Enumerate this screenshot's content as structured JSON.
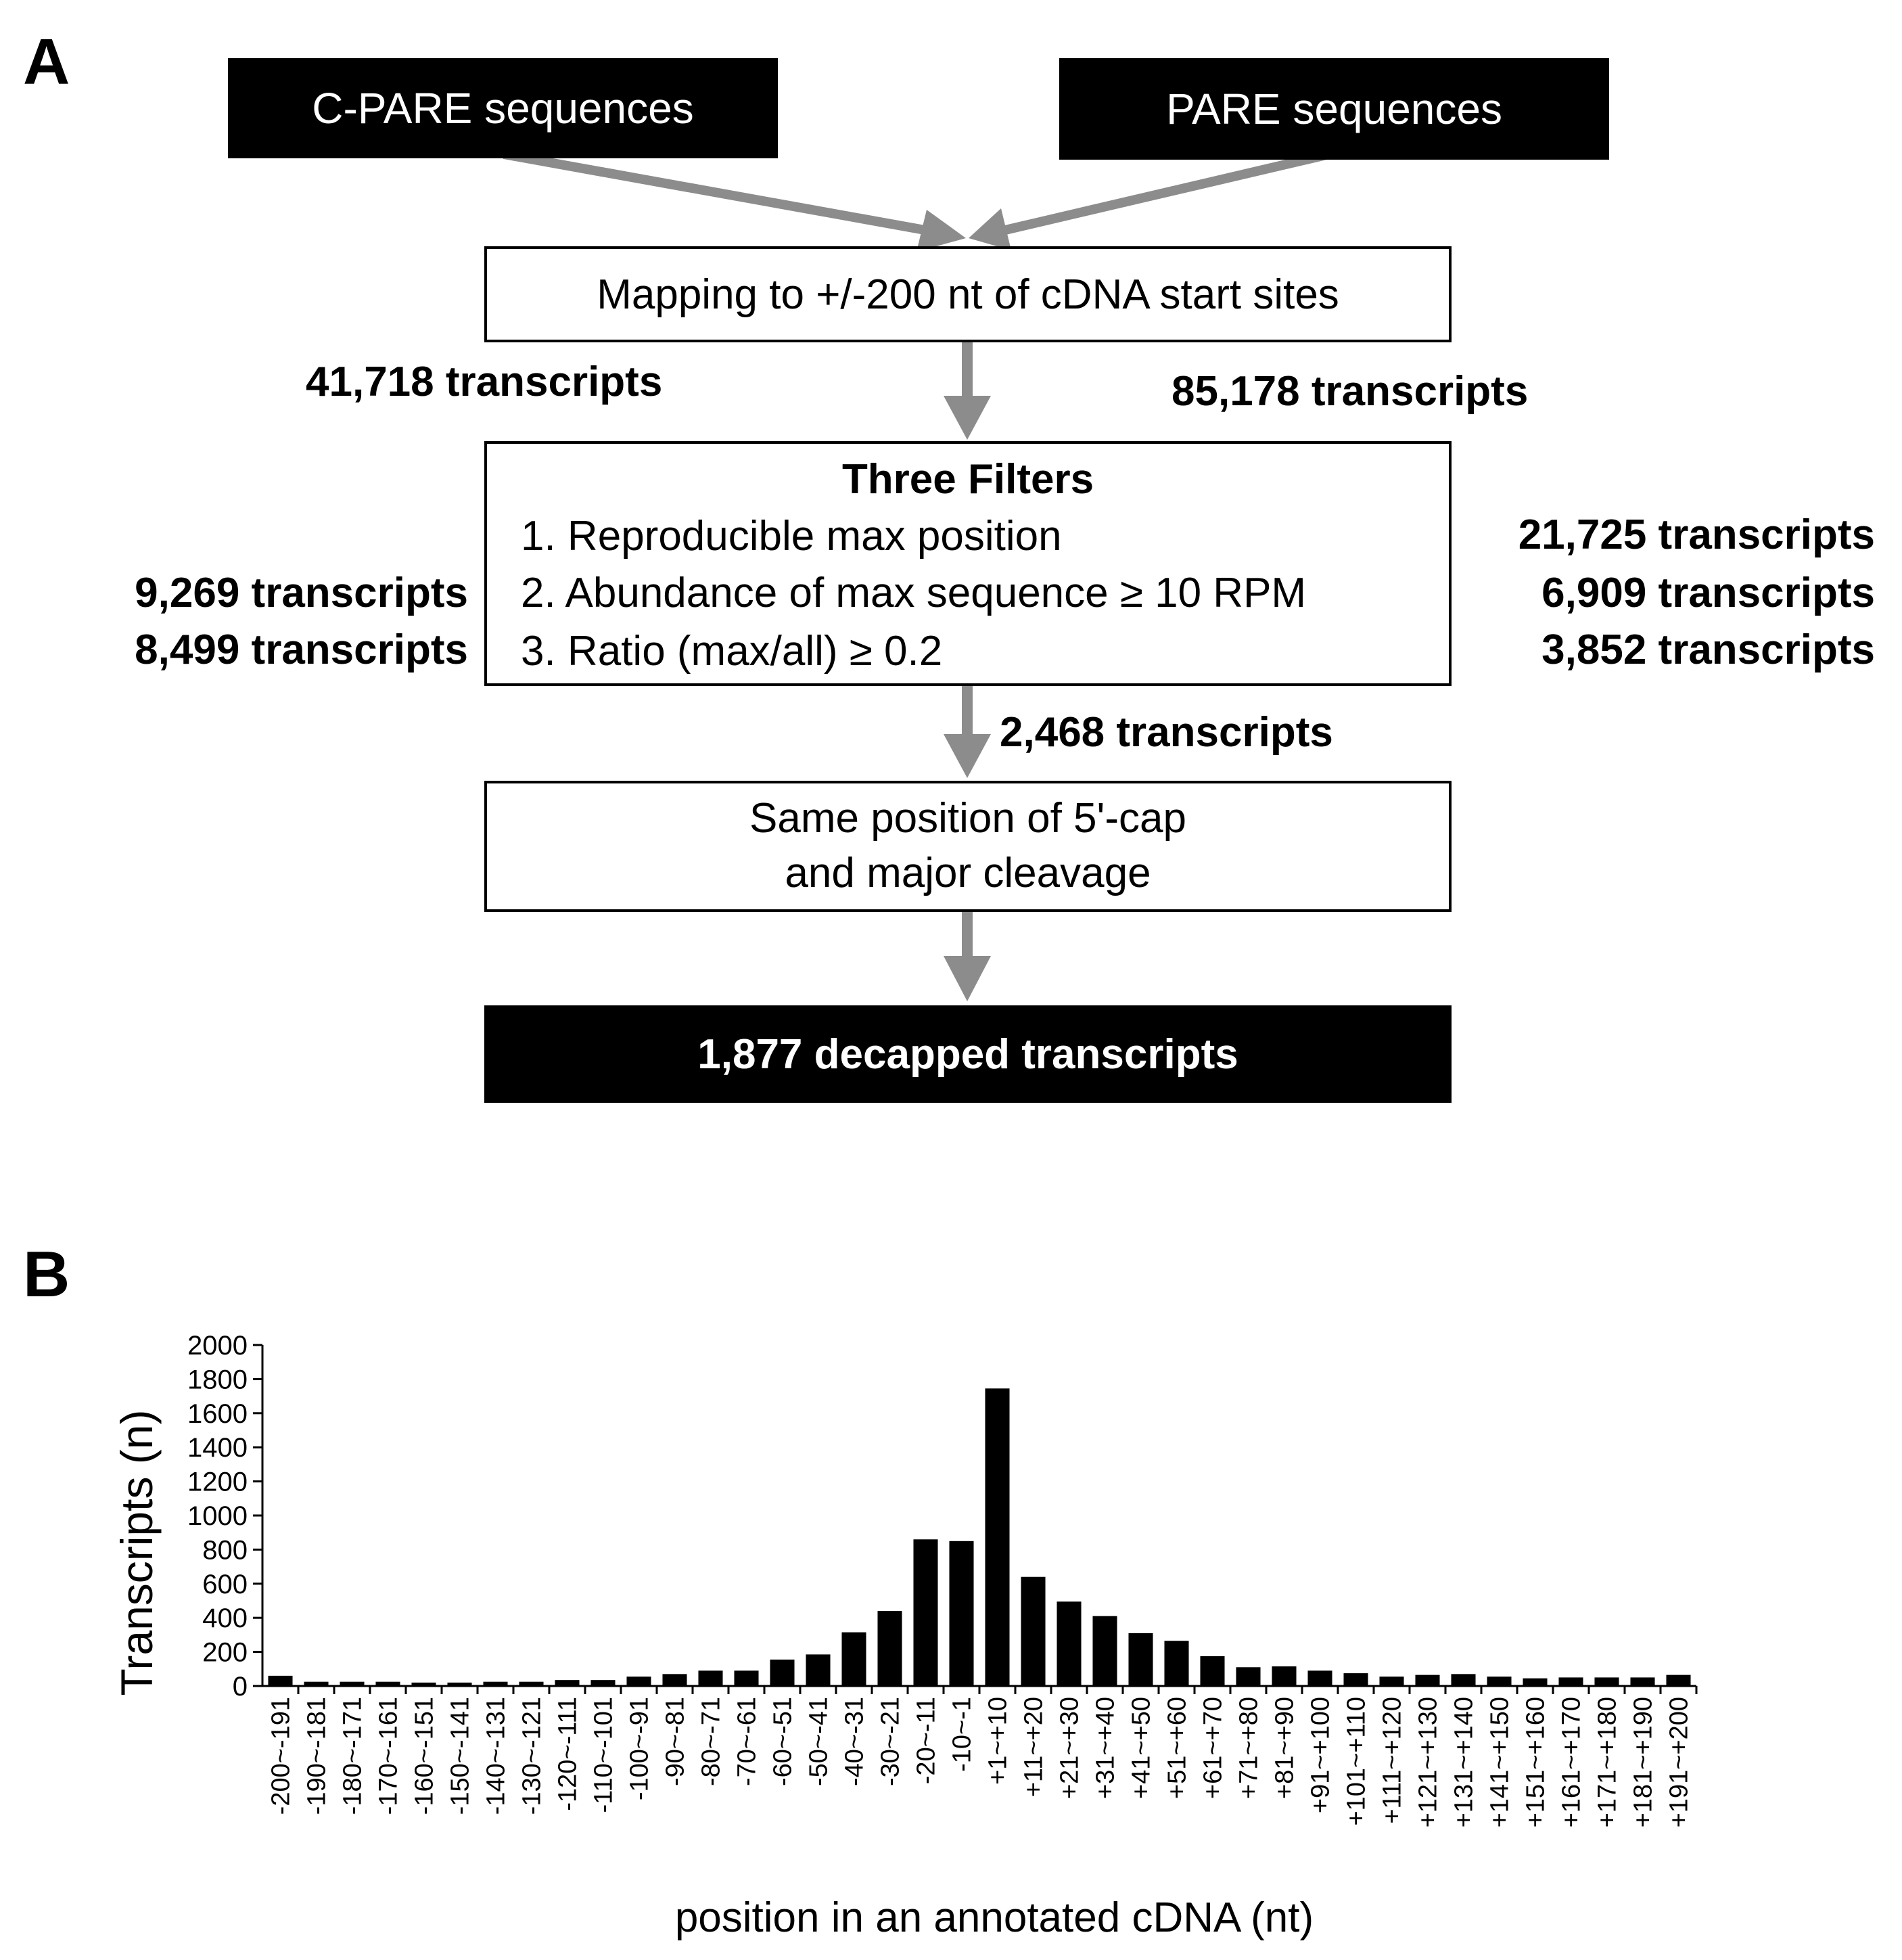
{
  "panel_a": {
    "label": "A",
    "source_left": "C-PARE sequences",
    "source_right": "PARE sequences",
    "mapping": "Mapping to +/-200 nt of cDNA start sites",
    "count_left_mapping": "41,718 transcripts",
    "count_right_mapping": "85,178 transcripts",
    "filters_title": "Three Filters",
    "filters": [
      "1. Reproducible max position",
      "2. Abundance of max sequence ≥ 10 RPM",
      "3. Ratio (max/all)  ≥ 0.2"
    ],
    "counts_left_filters": [
      "9,269 transcripts",
      "8,499 transcripts"
    ],
    "counts_right_filters": [
      "21,725 transcripts",
      "6,909 transcripts",
      "3,852 transcripts"
    ],
    "count_after_filters": "2,468 transcripts",
    "same_position_line1": "Same position of 5'-cap",
    "same_position_line2": "and major cleavage",
    "result": "1,877 decapped transcripts",
    "arrow_color": "#8c8c8c"
  },
  "panel_b": {
    "label": "B"
  },
  "chart_data": {
    "type": "bar",
    "title": "",
    "xlabel": "position  in  an  annotated  cDNA  (nt)",
    "ylabel": "Transcripts  (n)",
    "ylim": [
      0,
      2000
    ],
    "yticks": [
      "0",
      "200",
      "400",
      "600",
      "800",
      "1000",
      "1200",
      "1400",
      "1600",
      "1800",
      "2000"
    ],
    "categories": [
      "-200~-191",
      "-190~-181",
      "-180~-171",
      "-170~-161",
      "-160~-151",
      "-150~-141",
      "-140~-131",
      "-130~-121",
      "-120~-111",
      "-110~-101",
      "-100~-91",
      "-90~-81",
      "-80~-71",
      "-70~-61",
      "-60~-51",
      "-50~-41",
      "-40~-31",
      "-30~-21",
      "-20~-11",
      "-10~-1",
      "+1~+10",
      "+11~+20",
      "+21~+30",
      "+31~+40",
      "+41~+50",
      "+51~+60",
      "+61~+70",
      "+71~+80",
      "+81~+90",
      "+91~+100",
      "+101~+110",
      "+111~+120",
      "+121~+130",
      "+131~+140",
      "+141~+150",
      "+151~+160",
      "+161~+170",
      "+171~+180",
      "+181~+190",
      "+191~+200"
    ],
    "values": [
      60,
      25,
      25,
      25,
      20,
      20,
      25,
      25,
      35,
      35,
      55,
      70,
      90,
      90,
      155,
      185,
      315,
      440,
      860,
      850,
      1745,
      640,
      495,
      410,
      310,
      265,
      175,
      110,
      115,
      90,
      75,
      55,
      65,
      70,
      55,
      45,
      50,
      50,
      50,
      65
    ],
    "bar_color": "#000000"
  }
}
